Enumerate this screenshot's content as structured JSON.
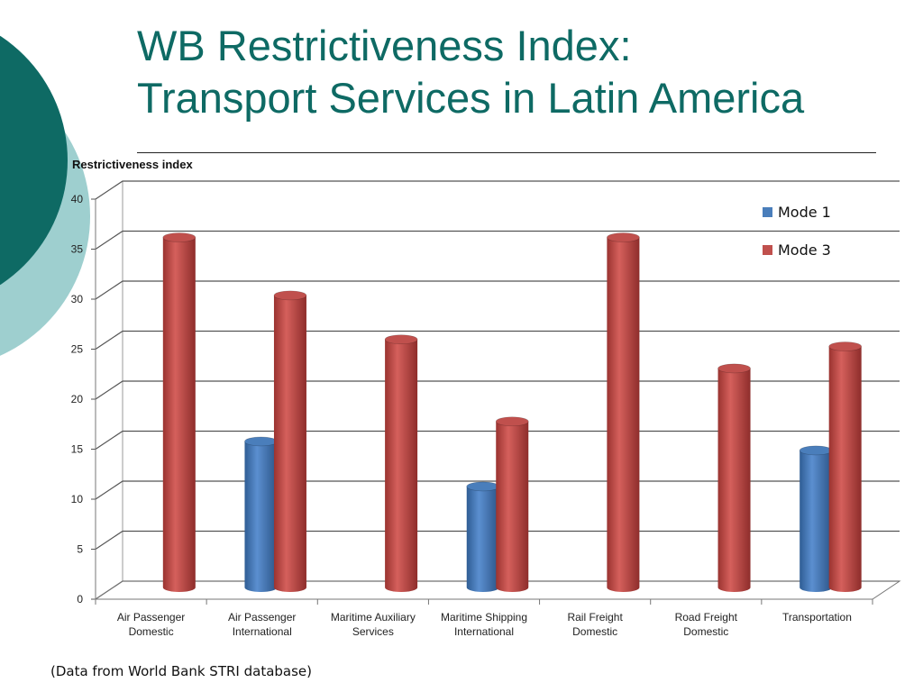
{
  "slide": {
    "title_line1": "WB Restrictiveness Index:",
    "title_line2": "Transport Services in Latin America",
    "source_note": "(Data from World Bank STRI database)"
  },
  "colors": {
    "title": "#0e6a64",
    "deco_dark": "#0e6a64",
    "deco_light": "#9ecfcf",
    "mode1": "#4a7ebb",
    "mode3": "#c0504d"
  },
  "chart_data": {
    "type": "bar",
    "style": "3d-cylinder",
    "ylabel": "Restrictiveness index",
    "xlabel": "",
    "ylim": [
      0,
      40
    ],
    "yticks": [
      0,
      5,
      10,
      15,
      20,
      25,
      30,
      35,
      40
    ],
    "grid": true,
    "legend_position": "top-right",
    "categories": [
      [
        "Air Passenger",
        "Domestic"
      ],
      [
        "Air Passenger",
        "International"
      ],
      [
        "Maritime Auxiliary",
        "Services"
      ],
      [
        "Maritime Shipping",
        "International"
      ],
      [
        "Rail Freight",
        "Domestic"
      ],
      [
        "Road Freight",
        "Domestic"
      ],
      [
        "Transportation"
      ]
    ],
    "series": [
      {
        "name": "Mode 1",
        "color": "#4a7ebb",
        "values": [
          0,
          14.6,
          0,
          10.1,
          0,
          0,
          13.7
        ]
      },
      {
        "name": "Mode 3",
        "color": "#c0504d",
        "values": [
          35,
          29.2,
          24.8,
          16.6,
          35,
          21.9,
          24.1
        ]
      }
    ]
  }
}
